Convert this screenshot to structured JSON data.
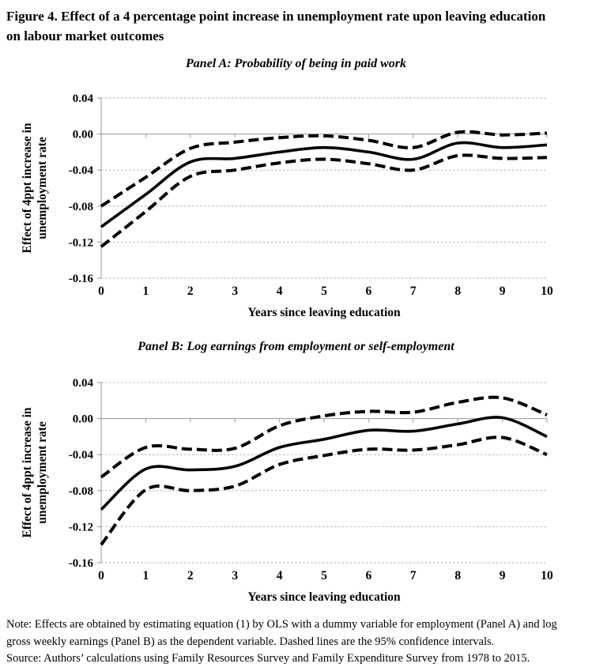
{
  "figure": {
    "title_lines": [
      "Figure 4. Effect of a 4 percentage point increase in unemployment rate upon leaving education",
      "on labour market outcomes"
    ]
  },
  "colors": {
    "background": "#ffffff",
    "line": "#000000",
    "grid": "#b3b3b3",
    "zero_line": "#9a9a9a",
    "text": "#000000"
  },
  "chart_data": [
    {
      "type": "line",
      "title": "Panel A: Probability of being in paid work",
      "xlabel": "Years since leaving education",
      "ylabel": "Effect of 4ppt increase in unemployment rate",
      "ylabel_lines": [
        "Effect of 4ppt increase in",
        "unemployment rate"
      ],
      "x": [
        0,
        1,
        2,
        3,
        4,
        5,
        6,
        7,
        8,
        9,
        10
      ],
      "x_tick_labels": [
        "0",
        "1",
        "2",
        "3",
        "4",
        "5",
        "6",
        "7",
        "8",
        "9",
        "10"
      ],
      "ylim": [
        -0.16,
        0.04
      ],
      "y_ticks": [
        0.04,
        0.0,
        -0.04,
        -0.08,
        -0.12,
        -0.16
      ],
      "y_tick_labels": [
        "0.04",
        "0.00",
        "-0.04",
        "-0.08",
        "-0.12",
        "-0.16"
      ],
      "grid": true,
      "legend": "none",
      "series": [
        {
          "name": "point-estimate",
          "style": "solid",
          "values": [
            -0.103,
            -0.067,
            -0.031,
            -0.027,
            -0.02,
            -0.015,
            -0.02,
            -0.028,
            -0.01,
            -0.015,
            -0.012
          ]
        },
        {
          "name": "upper-95ci",
          "style": "dashed",
          "values": [
            -0.08,
            -0.048,
            -0.016,
            -0.009,
            -0.004,
            -0.002,
            -0.007,
            -0.015,
            0.002,
            -0.001,
            0.001
          ]
        },
        {
          "name": "lower-95ci",
          "style": "dashed",
          "values": [
            -0.125,
            -0.086,
            -0.047,
            -0.04,
            -0.032,
            -0.028,
            -0.033,
            -0.04,
            -0.024,
            -0.027,
            -0.026
          ]
        }
      ]
    },
    {
      "type": "line",
      "title": "Panel B: Log earnings from employment or self-employment",
      "xlabel": "Years since leaving education",
      "ylabel": "Effect of 4ppt increase in unemployment rate",
      "ylabel_lines": [
        "Effect of 4ppt increase in",
        "unemployment rate"
      ],
      "x": [
        0,
        1,
        2,
        3,
        4,
        5,
        6,
        7,
        8,
        9,
        10
      ],
      "x_tick_labels": [
        "0",
        "1",
        "2",
        "3",
        "4",
        "5",
        "6",
        "7",
        "8",
        "9",
        "10"
      ],
      "ylim": [
        -0.16,
        0.04
      ],
      "y_ticks": [
        0.04,
        0.0,
        -0.04,
        -0.08,
        -0.12,
        -0.16
      ],
      "y_tick_labels": [
        "0.04",
        "0.00",
        "-0.04",
        "-0.08",
        "-0.12",
        "-0.16"
      ],
      "grid": true,
      "legend": "none",
      "series": [
        {
          "name": "point-estimate",
          "style": "solid",
          "values": [
            -0.101,
            -0.056,
            -0.057,
            -0.053,
            -0.032,
            -0.023,
            -0.013,
            -0.014,
            -0.006,
            0.001,
            -0.02
          ]
        },
        {
          "name": "upper-95ci",
          "style": "dashed",
          "values": [
            -0.065,
            -0.032,
            -0.034,
            -0.033,
            -0.008,
            0.003,
            0.008,
            0.007,
            0.018,
            0.023,
            0.004
          ]
        },
        {
          "name": "lower-95ci",
          "style": "dashed",
          "values": [
            -0.14,
            -0.079,
            -0.08,
            -0.075,
            -0.051,
            -0.041,
            -0.034,
            -0.035,
            -0.029,
            -0.021,
            -0.04
          ]
        }
      ]
    }
  ],
  "notes": {
    "lines": [
      "Note: Effects are obtained by estimating equation (1) by OLS with a dummy variable for employment (Panel A) and log",
      "gross weekly earnings (Panel B) as the dependent variable. Dashed lines are the 95% confidence intervals.",
      "Source: Authors’ calculations using Family Resources Survey and Family Expenditure Survey from 1978 to 2015."
    ]
  }
}
